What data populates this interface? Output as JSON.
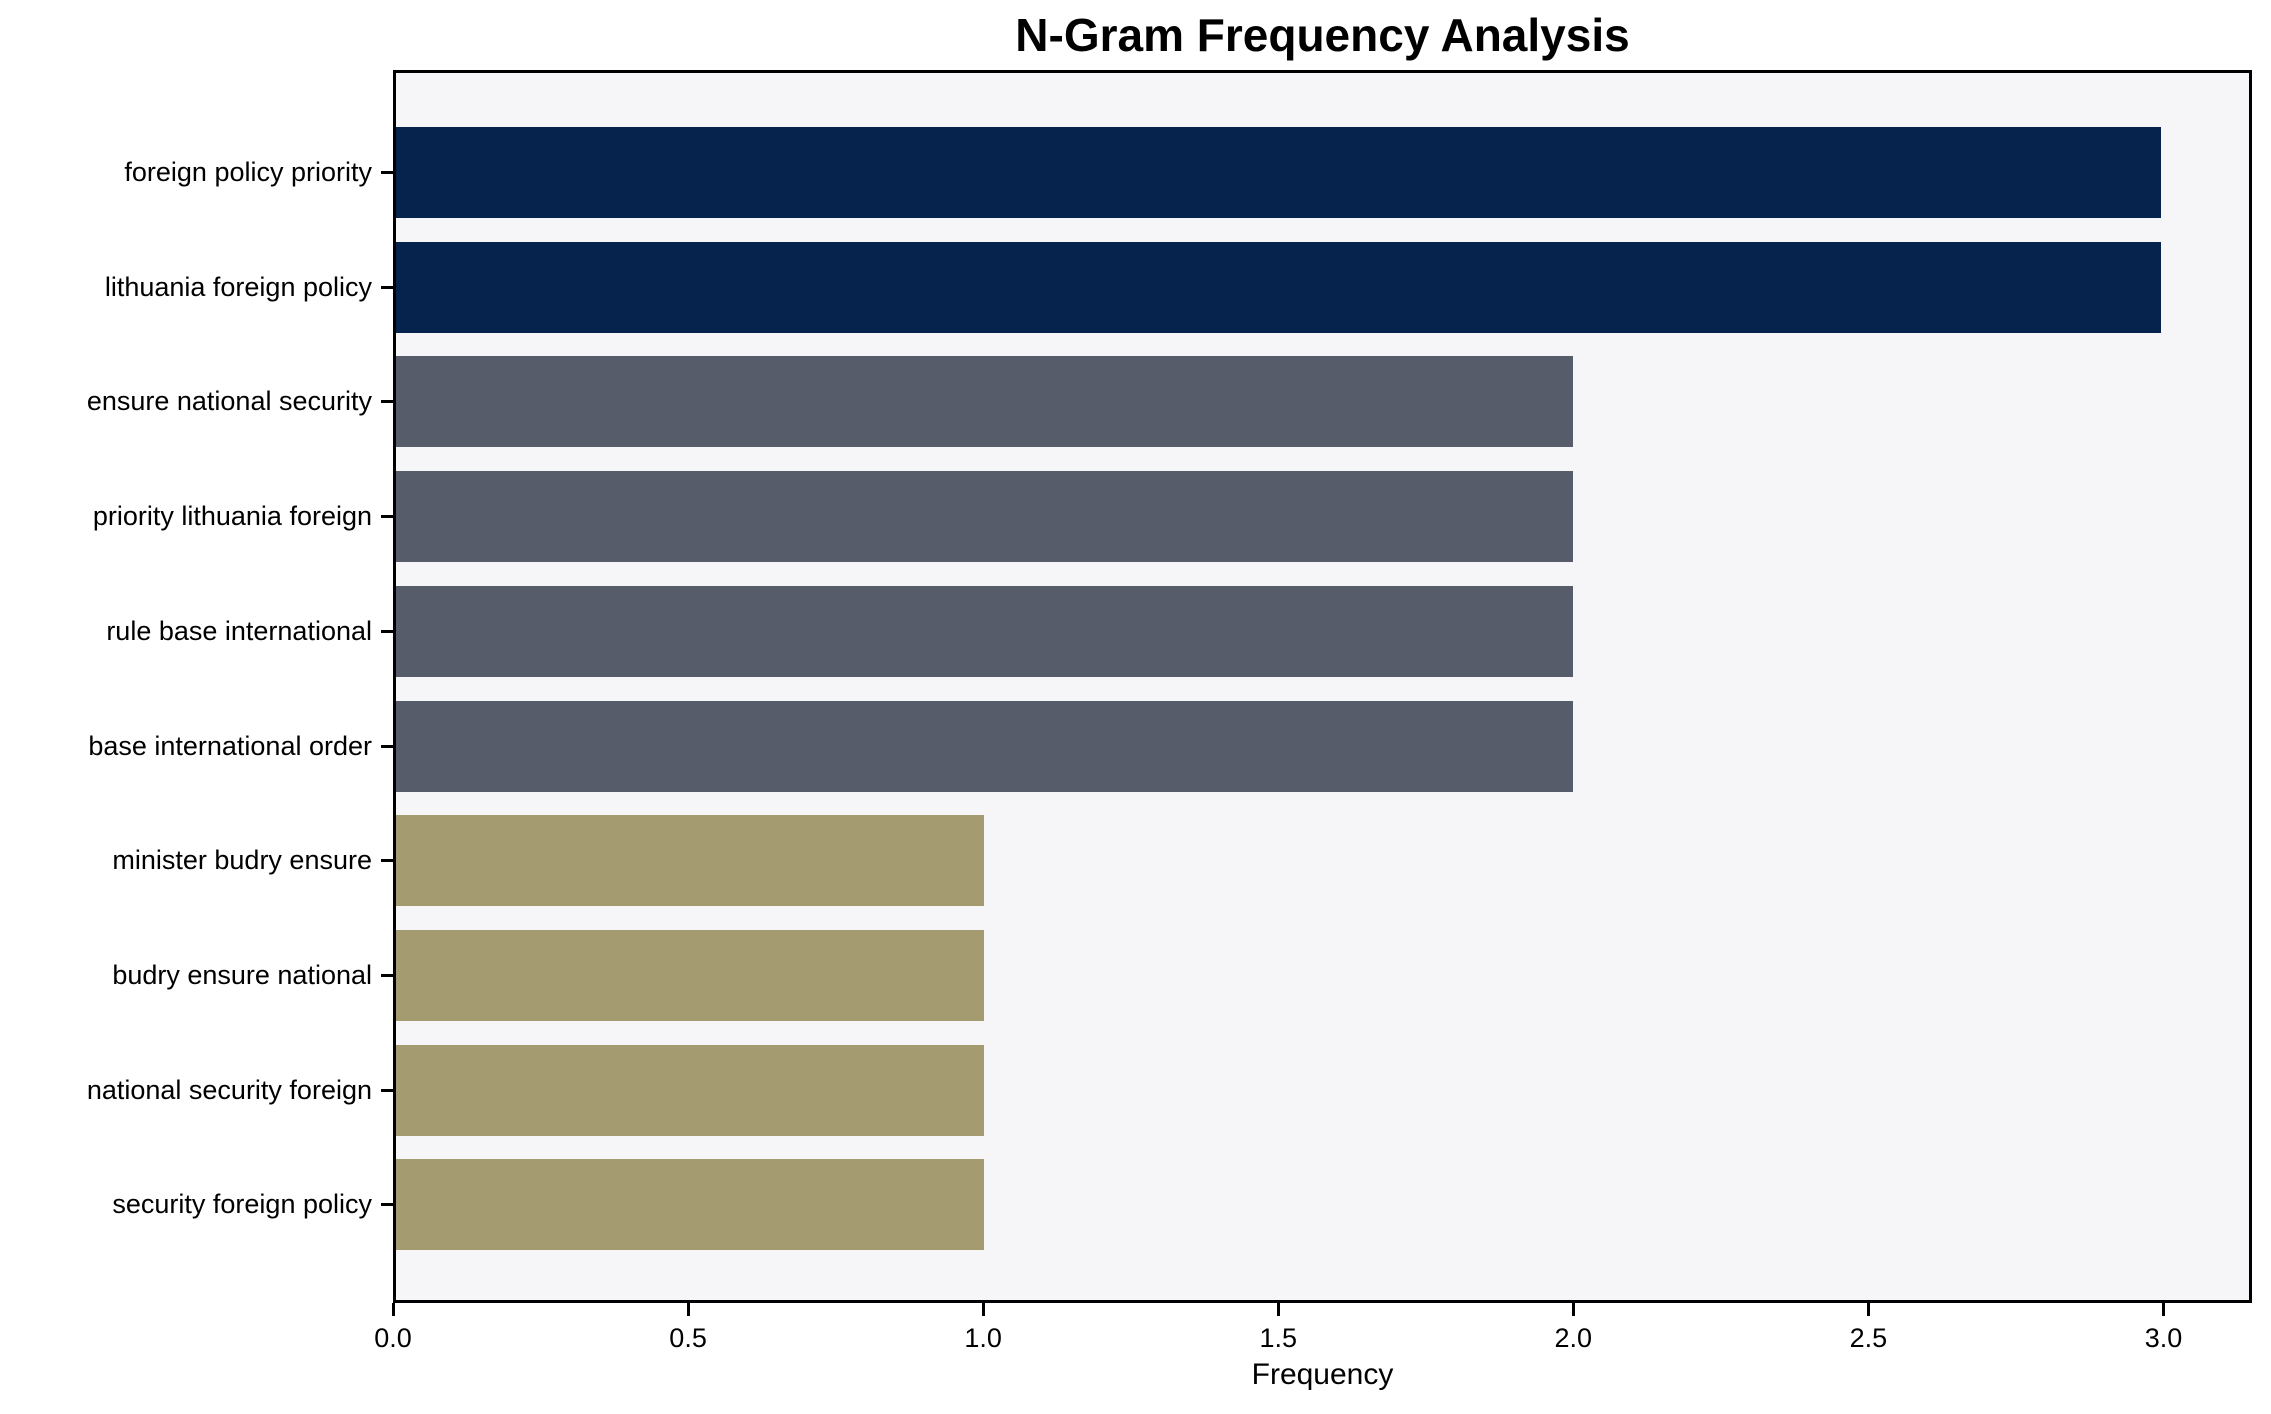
{
  "title": "N-Gram Frequency Analysis",
  "chart_data": {
    "type": "bar",
    "orientation": "horizontal",
    "title": "N-Gram Frequency Analysis",
    "categories": [
      "foreign policy priority",
      "lithuania foreign policy",
      "ensure national security",
      "priority lithuania foreign",
      "rule base international",
      "base international order",
      "minister budry ensure",
      "budry ensure national",
      "national security foreign",
      "security foreign policy"
    ],
    "values": [
      3,
      3,
      2,
      2,
      2,
      2,
      1,
      1,
      1,
      1
    ],
    "bar_colors": [
      "#05234c",
      "#05234c",
      "#575c6a",
      "#575c6a",
      "#575c6a",
      "#575c6a",
      "#a59b70",
      "#a59b70",
      "#a59b70",
      "#a59b70"
    ],
    "xlabel": "Frequency",
    "xtick_labels": [
      "0.0",
      "0.5",
      "1.0",
      "1.5",
      "2.0",
      "2.5",
      "3.0"
    ],
    "xtick_values": [
      0,
      0.5,
      1,
      1.5,
      2,
      2.5,
      3
    ],
    "xlim": [
      0,
      3.15
    ],
    "grid": "off",
    "legend": "none",
    "plot_bg": "#f6f6f8",
    "outer_bg": "#ffffff",
    "axis_color": "#000000"
  }
}
